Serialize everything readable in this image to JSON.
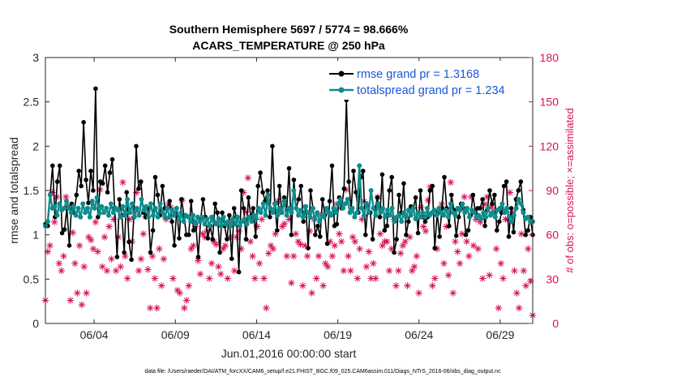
{
  "chart_data": {
    "type": "line",
    "title": [
      "Southern Hemisphere 5697 / 5774 = 98.666%",
      "ACARS_TEMPERATURE @ 250 hPa"
    ],
    "xlabel": "Jun.01,2016 00:00:00 start",
    "ylabel": "rmse and totalspread",
    "ylabel_right": "# of obs: o=possible; ×=assimilated",
    "xlim": [
      1,
      31
    ],
    "ylim": [
      0,
      3
    ],
    "ylim_right": [
      0,
      180
    ],
    "x_ticks": [
      4,
      9,
      14,
      19,
      24,
      29
    ],
    "x_tick_labels": [
      "06/04",
      "06/09",
      "06/14",
      "06/19",
      "06/24",
      "06/29"
    ],
    "y_ticks": [
      "0",
      "0.5",
      "1",
      "1.5",
      "2",
      "2.5",
      "3"
    ],
    "y_tick_values": [
      0,
      0.5,
      1,
      1.5,
      2,
      2.5,
      3
    ],
    "y_right_ticks": [
      "0",
      "30",
      "60",
      "90",
      "120",
      "150",
      "180"
    ],
    "y_right_tick_values": [
      0,
      30,
      60,
      90,
      120,
      150,
      180
    ],
    "legend_position": "top-right",
    "colors": {
      "rmse": "#000000",
      "spread": "#0e8c8c",
      "obs": "#d6115a",
      "right_axis": "#d6115a"
    },
    "series": [
      {
        "name": "rmse grand pr = 1.3168",
        "color": "#000000",
        "values": [
          1.12,
          1.1,
          1.45,
          1.78,
          1.2,
          1.6,
          1.78,
          1.02,
          1.06,
          1.3,
          0.88,
          1.35,
          1.25,
          1.45,
          1.72,
          1.55,
          2.27,
          1.62,
          1.36,
          1.72,
          1.5,
          2.65,
          1.2,
          1.6,
          1.58,
          1.78,
          1.48,
          1.7,
          1.85,
          1.3,
          0.75,
          1.4,
          1.22,
          0.8,
          1.48,
          0.92,
          0.72,
          1.2,
          2.0,
          1.52,
          1.6,
          1.25,
          1.2,
          1.3,
          0.8,
          1.05,
          1.65,
          1.45,
          1.22,
          1.55,
          1.3,
          1.3,
          1.38,
          1.15,
          0.88,
          1.3,
          0.96,
          1.4,
          1.22,
          1.0,
          1.0,
          1.38,
          1.05,
          1.12,
          0.75,
          1.18,
          1.4,
          1.2,
          0.96,
          1.1,
          0.95,
          1.35,
          1.25,
          0.8,
          1.25,
          1.1,
          0.95,
          1.22,
          0.73,
          1.3,
          1.2,
          0.58,
          1.5,
          1.3,
          0.95,
          1.42,
          1.2,
          1.3,
          0.98,
          1.55,
          1.7,
          1.48,
          1.38,
          1.5,
          1.2,
          2.0,
          1.35,
          1.05,
          1.55,
          1.25,
          1.42,
          1.28,
          1.75,
          1.0,
          1.62,
          1.3,
          1.4,
          1.55,
          1.15,
          1.32,
          0.85,
          1.5,
          1.3,
          1.0,
          1.1,
          0.98,
          1.4,
          1.22,
          0.9,
          1.38,
          1.78,
          1.1,
          1.12,
          1.42,
          1.3,
          1.52,
          2.52,
          1.6,
          1.28,
          1.72,
          1.48,
          1.25,
          1.65,
          1.72,
          1.0,
          1.32,
          1.25,
          0.95,
          1.3,
          1.42,
          1.2,
          1.68,
          1.05,
          1.1,
          1.5,
          1.65,
          0.8,
          0.95,
          1.45,
          1.25,
          1.58,
          1.0,
          1.15,
          1.32,
          1.3,
          1.42,
          1.02,
          1.5,
          1.2,
          1.15,
          1.2,
          1.5,
          1.55,
          0.85,
          1.25,
          0.98,
          1.3,
          1.65,
          1.3,
          1.1,
          1.45,
          1.28,
          0.99,
          1.2,
          1.35,
          1.3,
          1.0,
          1.05,
          1.22,
          1.45,
          1.25,
          1.3,
          1.3,
          1.4,
          1.1,
          1.28,
          1.5,
          1.35,
          1.45,
          1.05,
          1.15,
          1.25,
          1.55,
          1.6,
          0.98,
          1.3,
          1.03,
          1.4,
          1.5,
          1.6,
          1.28,
          1.0,
          1.05,
          1.2,
          1.0
        ]
      },
      {
        "name": "totalspread grand pr = 1.234",
        "color": "#0e8c8c",
        "values": [
          1.1,
          1.15,
          1.45,
          1.3,
          1.32,
          1.22,
          1.35,
          1.28,
          1.3,
          1.38,
          1.3,
          1.25,
          1.32,
          1.22,
          1.3,
          1.2,
          1.35,
          1.25,
          1.3,
          1.2,
          1.38,
          1.3,
          1.42,
          1.24,
          1.32,
          1.25,
          1.3,
          1.22,
          1.35,
          1.25,
          1.3,
          1.28,
          1.2,
          1.32,
          1.22,
          1.4,
          1.25,
          1.35,
          1.2,
          1.3,
          1.22,
          1.4,
          1.28,
          1.32,
          1.2,
          1.35,
          1.22,
          1.3,
          1.2,
          1.35,
          1.25,
          1.2,
          1.3,
          1.2,
          1.28,
          1.22,
          1.3,
          1.18,
          1.25,
          1.15,
          1.22,
          1.2,
          1.15,
          1.22,
          1.12,
          1.2,
          1.15,
          1.2,
          1.12,
          1.18,
          1.1,
          1.2,
          1.15,
          1.12,
          1.18,
          1.1,
          1.2,
          1.12,
          1.15,
          1.1,
          1.18,
          1.12,
          1.2,
          1.1,
          1.15,
          1.18,
          1.12,
          1.2,
          1.15,
          1.22,
          1.18,
          1.3,
          1.25,
          1.35,
          1.22,
          1.45,
          1.3,
          1.25,
          1.35,
          1.22,
          1.3,
          1.25,
          1.38,
          1.22,
          1.3,
          1.25,
          1.5,
          1.3,
          1.22,
          1.28,
          1.2,
          1.32,
          1.25,
          1.2,
          1.3,
          1.18,
          1.25,
          1.15,
          1.22,
          1.2,
          1.3,
          1.25,
          1.22,
          1.3,
          1.25,
          1.35,
          1.4,
          1.3,
          1.35,
          1.4,
          1.25,
          1.3,
          1.2,
          1.25,
          1.78,
          1.3,
          1.22,
          1.35,
          1.25,
          1.5,
          1.3,
          1.22,
          1.35,
          1.25,
          1.3,
          1.2,
          1.28,
          1.22,
          1.3,
          1.15,
          1.2,
          1.22,
          1.15,
          1.25,
          1.2,
          1.28,
          1.22,
          1.3,
          1.18,
          1.25,
          1.2,
          1.25,
          1.2,
          1.3,
          1.22,
          1.25,
          1.28,
          1.22,
          1.3,
          1.25,
          1.22,
          1.28,
          1.2,
          1.35,
          1.25,
          1.22,
          1.3,
          1.28,
          1.35,
          1.25,
          1.3,
          1.2,
          1.28,
          1.25,
          1.2,
          1.22,
          1.18,
          1.25,
          1.2,
          1.3,
          1.22,
          1.25,
          1.2,
          1.28,
          1.3,
          1.35,
          1.25,
          1.3,
          1.2,
          1.15,
          1.22,
          1.3,
          1.4,
          1.35,
          1.25,
          1.18,
          1.2,
          1.15,
          1.15
        ]
      }
    ],
    "obs_assimilated": [
      15,
      48,
      52,
      88,
      68,
      85,
      40,
      35,
      45,
      85,
      79,
      15,
      61,
      40,
      20,
      52,
      12,
      38,
      20,
      58,
      56,
      50,
      68,
      48,
      90,
      38,
      58,
      35,
      65,
      43,
      70,
      35,
      58,
      38,
      95,
      45,
      30,
      70,
      55,
      75,
      88,
      35,
      43,
      60,
      72,
      36,
      10,
      45,
      30,
      10,
      50,
      25,
      43,
      70,
      80,
      78,
      30,
      75,
      22,
      20,
      83,
      10,
      15,
      25,
      50,
      52,
      65,
      42,
      33,
      60,
      58,
      62,
      30,
      40,
      55,
      53,
      38,
      33,
      50,
      52,
      30,
      58,
      68,
      35,
      58,
      62,
      50,
      88,
      75,
      98,
      55,
      45,
      30,
      65,
      40,
      70,
      30,
      10,
      47,
      52,
      50,
      60,
      82,
      75,
      65,
      67,
      45,
      70,
      27,
      45,
      60,
      55,
      53,
      25,
      52,
      45,
      62,
      20,
      70,
      30,
      45,
      73,
      25,
      40,
      38,
      55,
      45,
      52,
      80,
      60,
      55,
      35,
      90,
      45,
      35,
      58,
      55,
      30,
      50,
      70,
      82,
      38,
      48,
      30,
      40,
      30,
      85,
      60,
      52,
      55,
      55,
      35,
      50,
      70,
      25,
      35,
      47,
      52,
      55,
      25,
      58,
      35,
      38,
      45,
      20,
      78,
      65,
      62,
      83,
      92,
      25,
      30,
      50,
      75,
      80,
      40,
      65,
      32,
      95,
      20,
      55,
      48,
      40,
      60,
      85,
      55,
      45,
      85,
      52,
      70,
      50,
      68,
      30,
      80,
      85,
      32,
      78,
      75,
      50,
      10,
      40,
      30,
      70,
      70,
      88,
      75,
      35,
      20,
      10,
      60,
      35,
      25,
      50,
      28,
      5
    ]
  },
  "footer": "data file: /Users/raeder/DAI/ATM_forcXX/CAM6_setup/f.e21.FHIST_BGC.f09_025.CAM6assim.011/Diags_NTrS_2016-06/obs_diag_output.nc"
}
